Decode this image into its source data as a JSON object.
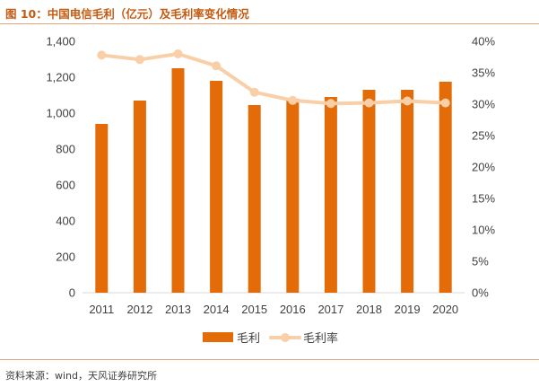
{
  "figure": {
    "title": "图 10：中国电信毛利（亿元）及毛利率变化情况",
    "source": "资料来源：wind，天风证券研究所"
  },
  "colors": {
    "bar": "#e36c09",
    "line": "#f9cfa8",
    "title": "#c55a11",
    "rule": "#e8a374",
    "axis": "#d9d9d9",
    "text": "#404040"
  },
  "chart_data": {
    "type": "bar+line",
    "categories": [
      "2011",
      "2012",
      "2013",
      "2014",
      "2015",
      "2016",
      "2017",
      "2018",
      "2019",
      "2020"
    ],
    "series": [
      {
        "name": "毛利",
        "type": "bar",
        "axis": "left",
        "values": [
          940,
          1070,
          1250,
          1180,
          1045,
          1080,
          1090,
          1130,
          1130,
          1175
        ]
      },
      {
        "name": "毛利率",
        "type": "line",
        "axis": "right",
        "values": [
          37.8,
          37.1,
          38.0,
          36.1,
          31.9,
          30.6,
          30.1,
          30.2,
          30.5,
          30.2
        ]
      }
    ],
    "y_left": {
      "min": 0,
      "max": 1400,
      "step": 200,
      "tick_labels": [
        "0",
        "200",
        "400",
        "600",
        "800",
        "1,000",
        "1,200",
        "1,400"
      ]
    },
    "y_right": {
      "min": 0,
      "max": 40,
      "step": 5,
      "tick_labels": [
        "0%",
        "5%",
        "10%",
        "15%",
        "20%",
        "25%",
        "30%",
        "35%",
        "40%"
      ]
    },
    "grid": false,
    "legend": "bottom-center"
  }
}
